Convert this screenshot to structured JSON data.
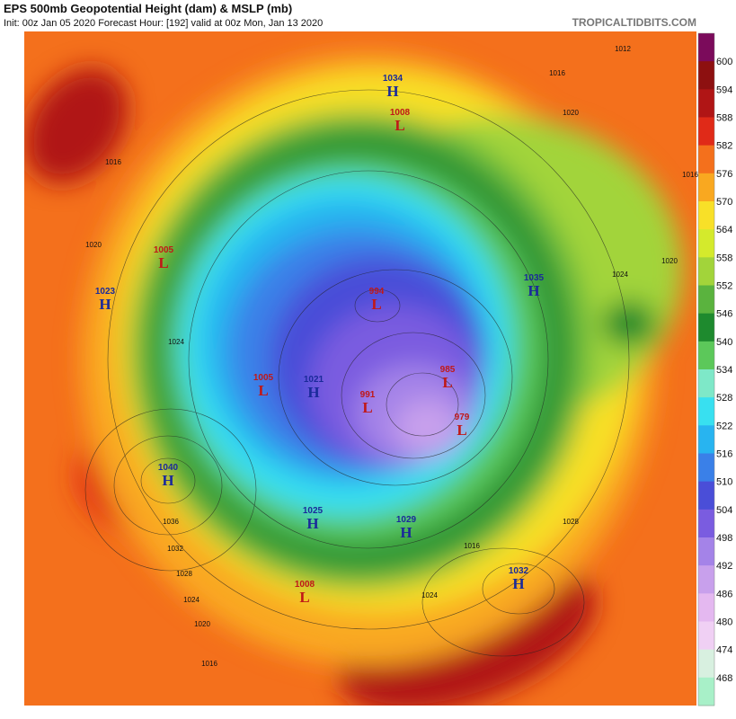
{
  "header": {
    "title": "EPS 500mb Geopotential Height (dam) & MSLP (mb)",
    "subtitle": "Init: 00z Jan 05 2020   Forecast Hour: [192]   valid at 00z Mon, Jan 13 2020",
    "site": "TROPICALTIDBITS.COM"
  },
  "colorbar": {
    "labels": [
      "600",
      "594",
      "588",
      "582",
      "576",
      "570",
      "564",
      "558",
      "552",
      "546",
      "540",
      "534",
      "528",
      "522",
      "516",
      "510",
      "504",
      "498",
      "492",
      "486",
      "480",
      "474",
      "468"
    ]
  },
  "centers": [
    {
      "letter": "H",
      "value": "1034"
    },
    {
      "letter": "L",
      "value": "1008"
    },
    {
      "letter": "L",
      "value": "1005"
    },
    {
      "letter": "H",
      "value": "1023"
    },
    {
      "letter": "L",
      "value": "994"
    },
    {
      "letter": "H",
      "value": "1035"
    },
    {
      "letter": "L",
      "value": "985"
    },
    {
      "letter": "L",
      "value": "1005"
    },
    {
      "letter": "H",
      "value": "1021"
    },
    {
      "letter": "L",
      "value": "991"
    },
    {
      "letter": "L",
      "value": "979"
    },
    {
      "letter": "H",
      "value": "1040"
    },
    {
      "letter": "H",
      "value": "1025"
    },
    {
      "letter": "H",
      "value": "1029"
    },
    {
      "letter": "H",
      "value": "1032"
    },
    {
      "letter": "L",
      "value": "1008"
    }
  ],
  "isobar_labels": [
    "1016",
    "1020",
    "1024",
    "1036",
    "1032",
    "1028",
    "1024",
    "1020",
    "1016",
    "1012",
    "1016",
    "1020",
    "1016",
    "1020",
    "1024",
    "1028",
    "1024",
    "1016"
  ]
}
